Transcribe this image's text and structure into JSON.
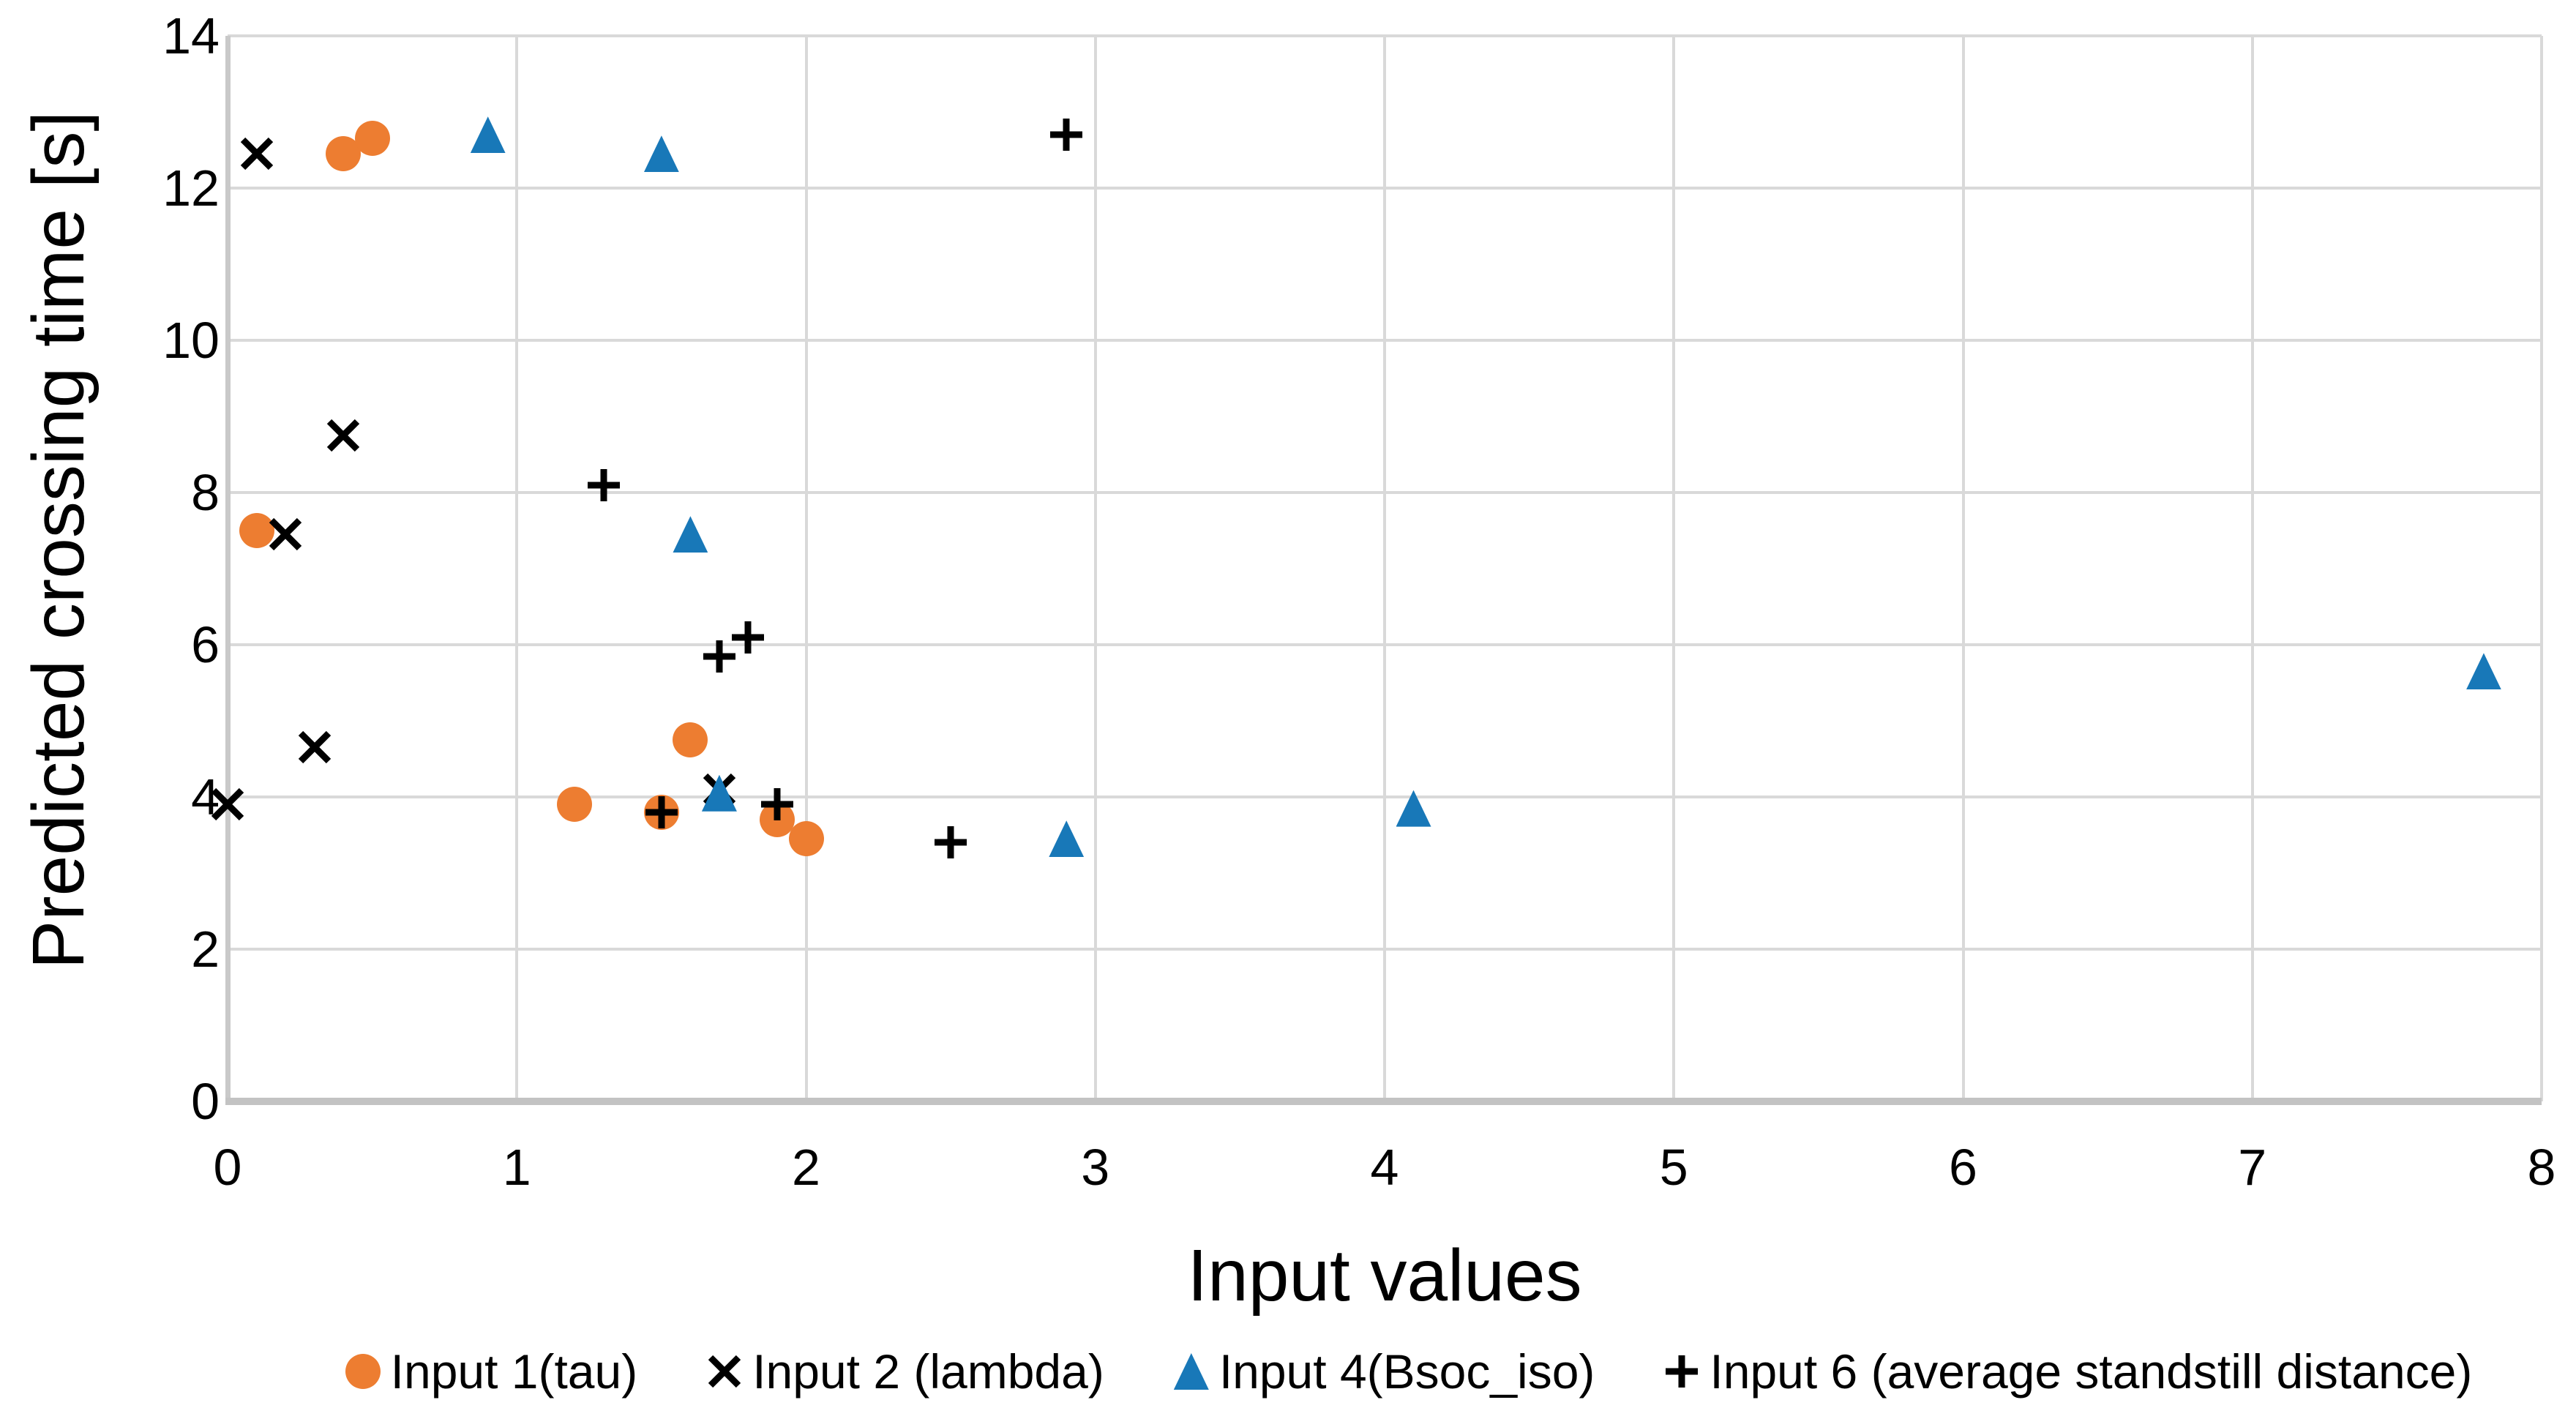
{
  "chart_data": {
    "type": "scatter",
    "title": "",
    "xlabel": "Input values",
    "ylabel": "Predicted crossing time [s]",
    "xlim": [
      0,
      8
    ],
    "ylim": [
      0,
      14
    ],
    "x_ticks": [
      "0",
      "1",
      "2",
      "3",
      "4",
      "5",
      "6",
      "7",
      "8"
    ],
    "x_tick_values": [
      0,
      1,
      2,
      3,
      4,
      5,
      6,
      7,
      8
    ],
    "y_ticks": [
      "0",
      "2",
      "4",
      "6",
      "8",
      "10",
      "12",
      "14"
    ],
    "y_tick_values": [
      0,
      2,
      4,
      6,
      8,
      10,
      12,
      14
    ],
    "grid": true,
    "legend_position": "bottom",
    "colors": {
      "orange": "#ED7D31",
      "blue": "#1878B8",
      "black": "#000000",
      "gridline": "#D9D9D9",
      "axis_line": "#C3C3C3"
    },
    "series": [
      {
        "name": "Input 1(tau)",
        "marker": "circle",
        "color": "#ED7D31",
        "points": [
          [
            0.4,
            12.45
          ],
          [
            0.5,
            12.65
          ],
          [
            0.1,
            7.5
          ],
          [
            1.6,
            4.75
          ],
          [
            1.2,
            3.9
          ],
          [
            1.5,
            3.8
          ],
          [
            1.9,
            3.7
          ],
          [
            2.0,
            3.45
          ]
        ]
      },
      {
        "name": "Input 2 (lambda)",
        "marker": "x",
        "color": "#000000",
        "points": [
          [
            0.1,
            12.45
          ],
          [
            0.4,
            8.75
          ],
          [
            0.2,
            7.45
          ],
          [
            0.3,
            4.65
          ],
          [
            0.0,
            3.9
          ],
          [
            1.7,
            4.1
          ]
        ]
      },
      {
        "name": "Input 4(Bsoc_iso)",
        "marker": "triangle",
        "color": "#1878B8",
        "points": [
          [
            0.9,
            12.7
          ],
          [
            1.5,
            12.45
          ],
          [
            1.6,
            7.45
          ],
          [
            1.7,
            4.05
          ],
          [
            2.9,
            3.45
          ],
          [
            4.1,
            3.85
          ],
          [
            7.8,
            5.65
          ]
        ]
      },
      {
        "name": "Input 6 (average standstill distance)",
        "marker": "plus",
        "color": "#000000",
        "points": [
          [
            2.9,
            12.7
          ],
          [
            1.3,
            8.1
          ],
          [
            1.8,
            6.1
          ],
          [
            1.7,
            5.85
          ],
          [
            1.5,
            3.8
          ],
          [
            1.9,
            3.9
          ],
          [
            2.5,
            3.4
          ]
        ]
      }
    ]
  }
}
